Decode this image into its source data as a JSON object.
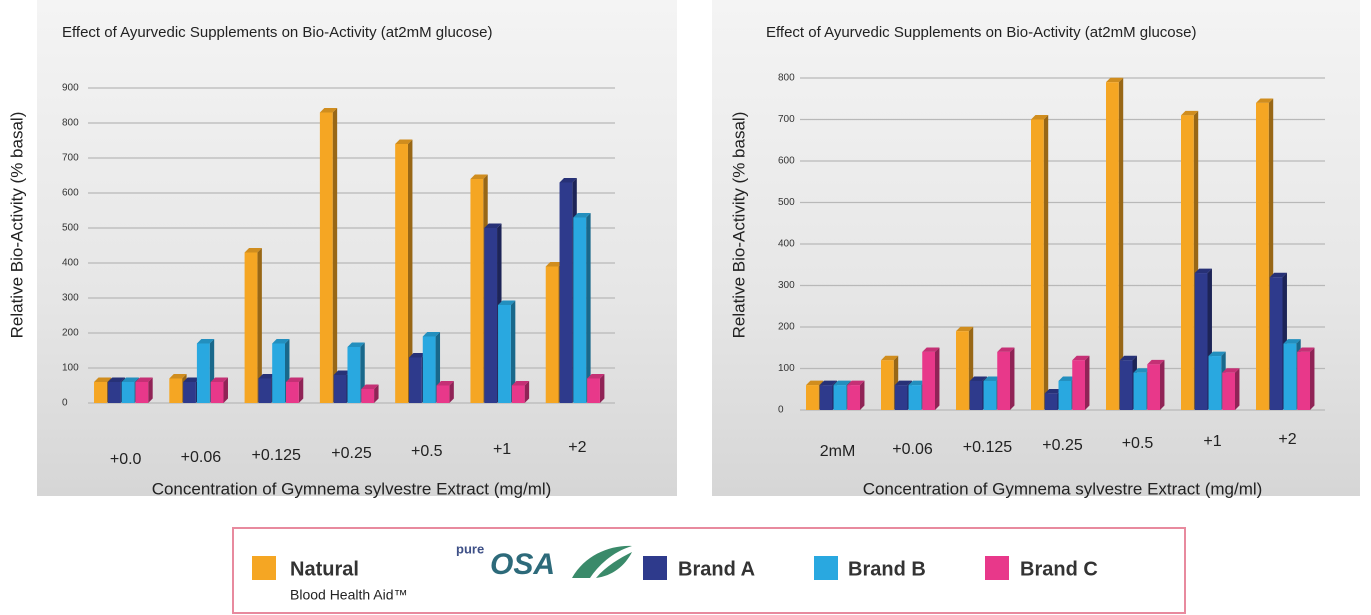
{
  "chart_data": [
    {
      "type": "bar3d",
      "title": "Effect of Ayurvedic Supplements on Bio-Activity (at2mM glucose)",
      "y_label": "Relative Bio-Activity (% basal)",
      "x_label": "Concentration of Gymnema sylvestre Extract (mg/ml)",
      "categories": [
        "+0.0",
        "+0.06",
        "+0.125",
        "+0.25",
        "+0.5",
        "+1",
        "+2"
      ],
      "series": [
        {
          "name": "Natural",
          "color": "#f5a623",
          "values": [
            60,
            70,
            430,
            830,
            740,
            640,
            390
          ]
        },
        {
          "name": "Brand A",
          "color": "#2e3a8c",
          "values": [
            60,
            60,
            70,
            80,
            130,
            500,
            630
          ]
        },
        {
          "name": "Brand B",
          "color": "#29a8e0",
          "values": [
            60,
            170,
            170,
            160,
            190,
            280,
            530
          ]
        },
        {
          "name": "Brand C",
          "color": "#e8388a",
          "values": [
            60,
            60,
            60,
            40,
            50,
            50,
            70
          ]
        }
      ],
      "ylim": [
        0,
        900
      ],
      "yticks": [
        0,
        100,
        200,
        300,
        400,
        500,
        600,
        700,
        800,
        900
      ],
      "grid": true
    },
    {
      "type": "bar3d",
      "title": "Effect of Ayurvedic Supplements on Bio-Activity (at2mM glucose)",
      "y_label": "Relative Bio-Activity (% basal)",
      "x_label": "Concentration of Gymnema sylvestre Extract (mg/ml)",
      "categories": [
        "2mM",
        "+0.06",
        "+0.125",
        "+0.25",
        "+0.5",
        "+1",
        "+2"
      ],
      "series": [
        {
          "color": "#f5a623",
          "values": [
            60,
            120,
            190,
            700,
            790,
            710,
            740
          ]
        },
        {
          "color": "#2e3a8c",
          "values": [
            60,
            60,
            70,
            40,
            120,
            330,
            320
          ]
        },
        {
          "color": "#29a8e0",
          "values": [
            60,
            60,
            70,
            70,
            90,
            130,
            160
          ]
        },
        {
          "color": "#e8388a",
          "values": [
            60,
            140,
            140,
            120,
            110,
            90,
            140
          ]
        }
      ],
      "ylim": [
        0,
        800
      ],
      "yticks": [
        0,
        100,
        200,
        300,
        400,
        500,
        600,
        700,
        800
      ],
      "grid": true
    }
  ],
  "legend": {
    "note": "Blood Health Aid™",
    "logo_prefix": "pure",
    "logo": "OSA"
  }
}
